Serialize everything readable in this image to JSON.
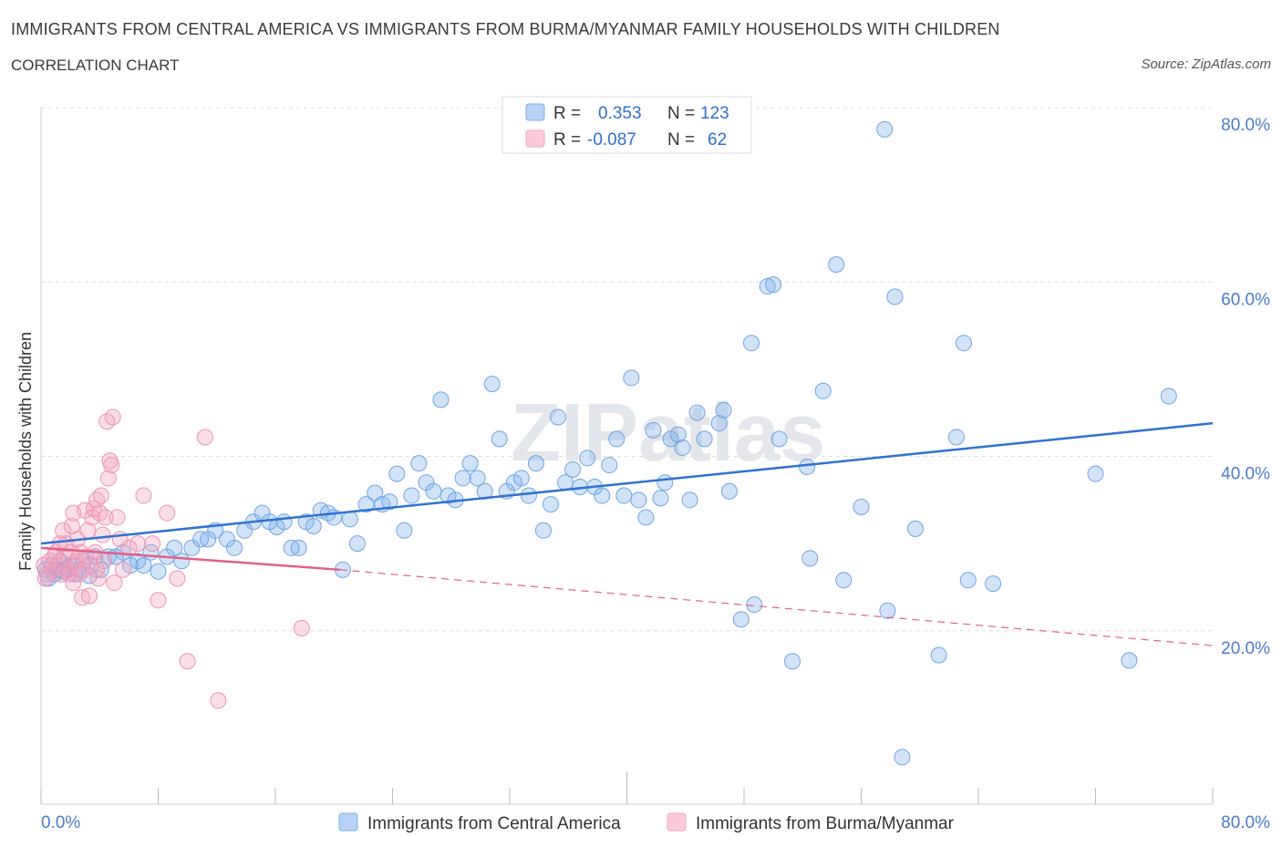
{
  "title": "IMMIGRANTS FROM CENTRAL AMERICA VS IMMIGRANTS FROM BURMA/MYANMAR FAMILY HOUSEHOLDS WITH CHILDREN",
  "subtitle": "CORRELATION CHART",
  "source": "Source: ZipAtlas.com",
  "watermark": "ZIPatlas",
  "colors": {
    "blue": "#7fb0ea",
    "blue_line": "#2f72d1",
    "pink": "#f2a3bd",
    "pink_line": "#e0608a",
    "axis_label": "#4a7cc9",
    "grid": "#dddddd"
  },
  "stats_legend": [
    {
      "r_label": "R =",
      "r_value": "0.353",
      "n_label": "N =",
      "n_value": "123"
    },
    {
      "r_label": "R =",
      "r_value": "-0.087",
      "n_label": "N =",
      "n_value": "62"
    }
  ],
  "chart_data": {
    "type": "scatter",
    "xlabel": "",
    "ylabel": "Family Households with Children",
    "xlim": [
      0,
      80
    ],
    "ylim": [
      0,
      80
    ],
    "x_tick_labels": [
      "0.0%",
      "80.0%"
    ],
    "y_tick_labels": [
      "20.0%",
      "40.0%",
      "60.0%",
      "80.0%"
    ],
    "y_ticks": [
      20,
      40,
      60,
      80
    ],
    "legend": [
      "Immigrants from Central America",
      "Immigrants from Burma/Myanmar"
    ],
    "series": [
      {
        "name": "Immigrants from Central America",
        "color": "#7fb0ea",
        "trend": {
          "x0": 0,
          "y0": 30.0,
          "x1": 80,
          "y1": 43.8
        },
        "points": [
          [
            0.3,
            27.0
          ],
          [
            0.5,
            26.0
          ],
          [
            0.7,
            27.5
          ],
          [
            0.9,
            26.5
          ],
          [
            1.1,
            27.0
          ],
          [
            1.3,
            28.0
          ],
          [
            1.5,
            26.8
          ],
          [
            1.8,
            27.2
          ],
          [
            2.0,
            27.5
          ],
          [
            2.3,
            26.5
          ],
          [
            2.6,
            27.0
          ],
          [
            2.9,
            28.0
          ],
          [
            3.3,
            26.3
          ],
          [
            3.7,
            28.5
          ],
          [
            4.1,
            27.0
          ],
          [
            4.6,
            28.5
          ],
          [
            5.1,
            28.5
          ],
          [
            5.6,
            29.0
          ],
          [
            6.1,
            27.5
          ],
          [
            6.6,
            28.0
          ],
          [
            7.0,
            27.5
          ],
          [
            7.5,
            29.0
          ],
          [
            8.0,
            26.8
          ],
          [
            8.6,
            28.5
          ],
          [
            9.1,
            29.5
          ],
          [
            9.6,
            28.0
          ],
          [
            10.3,
            29.5
          ],
          [
            10.9,
            30.5
          ],
          [
            11.4,
            30.5
          ],
          [
            11.9,
            31.5
          ],
          [
            12.7,
            30.5
          ],
          [
            13.2,
            29.5
          ],
          [
            13.9,
            31.5
          ],
          [
            14.5,
            32.5
          ],
          [
            15.1,
            33.5
          ],
          [
            15.6,
            32.5
          ],
          [
            16.1,
            31.9
          ],
          [
            16.6,
            32.5
          ],
          [
            17.1,
            29.5
          ],
          [
            17.6,
            29.5
          ],
          [
            18.1,
            32.5
          ],
          [
            18.6,
            32.0
          ],
          [
            19.1,
            33.8
          ],
          [
            19.6,
            33.5
          ],
          [
            20.0,
            33.0
          ],
          [
            20.6,
            27.0
          ],
          [
            21.1,
            32.8
          ],
          [
            21.6,
            30.0
          ],
          [
            22.2,
            34.5
          ],
          [
            22.8,
            35.8
          ],
          [
            23.3,
            34.5
          ],
          [
            23.8,
            34.8
          ],
          [
            24.3,
            38.0
          ],
          [
            24.8,
            31.5
          ],
          [
            25.3,
            35.5
          ],
          [
            25.8,
            39.2
          ],
          [
            26.3,
            37.0
          ],
          [
            26.8,
            36.0
          ],
          [
            27.3,
            46.5
          ],
          [
            27.8,
            35.5
          ],
          [
            28.3,
            35.0
          ],
          [
            28.8,
            37.5
          ],
          [
            29.3,
            39.2
          ],
          [
            29.8,
            37.5
          ],
          [
            30.3,
            36.0
          ],
          [
            30.8,
            48.3
          ],
          [
            31.3,
            42.0
          ],
          [
            31.8,
            36.0
          ],
          [
            32.3,
            37.0
          ],
          [
            32.8,
            37.5
          ],
          [
            33.3,
            35.5
          ],
          [
            33.8,
            39.2
          ],
          [
            34.3,
            31.5
          ],
          [
            34.8,
            34.5
          ],
          [
            35.3,
            44.5
          ],
          [
            35.8,
            37.0
          ],
          [
            36.3,
            38.5
          ],
          [
            36.8,
            36.5
          ],
          [
            37.3,
            39.8
          ],
          [
            37.8,
            36.5
          ],
          [
            38.3,
            35.5
          ],
          [
            38.8,
            39.0
          ],
          [
            39.3,
            42.0
          ],
          [
            39.8,
            35.5
          ],
          [
            40.3,
            49.0
          ],
          [
            40.8,
            35.0
          ],
          [
            41.3,
            33.0
          ],
          [
            41.8,
            43.0
          ],
          [
            42.3,
            35.2
          ],
          [
            42.6,
            37.0
          ],
          [
            43.0,
            42.0
          ],
          [
            43.5,
            42.5
          ],
          [
            43.8,
            41.0
          ],
          [
            44.3,
            35.0
          ],
          [
            44.8,
            45.0
          ],
          [
            45.3,
            42.0
          ],
          [
            46.3,
            43.8
          ],
          [
            46.6,
            45.3
          ],
          [
            47.0,
            36.0
          ],
          [
            47.8,
            21.3
          ],
          [
            48.5,
            53.0
          ],
          [
            48.7,
            23.0
          ],
          [
            49.6,
            59.5
          ],
          [
            50.0,
            59.7
          ],
          [
            50.4,
            42.0
          ],
          [
            51.3,
            16.5
          ],
          [
            52.3,
            38.8
          ],
          [
            52.5,
            28.3
          ],
          [
            53.4,
            47.5
          ],
          [
            54.3,
            62.0
          ],
          [
            54.8,
            25.8
          ],
          [
            56.0,
            34.2
          ],
          [
            57.6,
            77.5
          ],
          [
            57.8,
            22.3
          ],
          [
            58.3,
            58.3
          ],
          [
            58.8,
            5.5
          ],
          [
            59.7,
            31.7
          ],
          [
            61.3,
            17.2
          ],
          [
            62.5,
            42.2
          ],
          [
            63.0,
            53.0
          ],
          [
            63.3,
            25.8
          ],
          [
            65.0,
            25.4
          ],
          [
            72.0,
            38.0
          ],
          [
            74.3,
            16.6
          ],
          [
            77.0,
            46.9
          ]
        ]
      },
      {
        "name": "Immigrants from Burma/Myanmar",
        "color": "#f2a3bd",
        "trend": {
          "x0": 0,
          "y0": 29.5,
          "x1": 20.4,
          "y1": 27.0,
          "dash_x1": 80,
          "dash_y1": 18.3
        },
        "points": [
          [
            0.2,
            27.5
          ],
          [
            0.4,
            26.5
          ],
          [
            0.6,
            28.0
          ],
          [
            0.8,
            27.0
          ],
          [
            1.0,
            29.0
          ],
          [
            1.2,
            27.5
          ],
          [
            1.4,
            26.5
          ],
          [
            1.5,
            31.5
          ],
          [
            1.6,
            28.5
          ],
          [
            1.7,
            30.0
          ],
          [
            1.8,
            27.0
          ],
          [
            1.9,
            26.5
          ],
          [
            2.0,
            29.0
          ],
          [
            2.1,
            32.0
          ],
          [
            2.2,
            33.5
          ],
          [
            2.3,
            27.5
          ],
          [
            2.4,
            28.0
          ],
          [
            2.5,
            30.5
          ],
          [
            2.6,
            26.5
          ],
          [
            2.7,
            29.0
          ],
          [
            2.8,
            23.8
          ],
          [
            2.9,
            27.0
          ],
          [
            3.0,
            33.8
          ],
          [
            3.1,
            28.5
          ],
          [
            3.2,
            31.5
          ],
          [
            3.3,
            24.0
          ],
          [
            3.4,
            27.5
          ],
          [
            3.5,
            33.0
          ],
          [
            3.6,
            34.0
          ],
          [
            3.7,
            29.0
          ],
          [
            3.8,
            35.0
          ],
          [
            3.9,
            26.0
          ],
          [
            4.0,
            33.5
          ],
          [
            4.1,
            35.5
          ],
          [
            4.2,
            31.0
          ],
          [
            4.3,
            28.0
          ],
          [
            4.4,
            33.0
          ],
          [
            4.5,
            44.0
          ],
          [
            4.6,
            37.5
          ],
          [
            4.7,
            39.5
          ],
          [
            4.8,
            39.0
          ],
          [
            4.9,
            44.5
          ],
          [
            5.0,
            25.5
          ],
          [
            5.2,
            33.0
          ],
          [
            5.4,
            30.5
          ],
          [
            5.6,
            27.0
          ],
          [
            6.0,
            29.5
          ],
          [
            6.6,
            30.0
          ],
          [
            7.0,
            35.5
          ],
          [
            7.6,
            30.0
          ],
          [
            8.0,
            23.5
          ],
          [
            8.6,
            33.5
          ],
          [
            9.3,
            26.0
          ],
          [
            10.0,
            16.5
          ],
          [
            11.2,
            42.2
          ],
          [
            12.1,
            12.0
          ],
          [
            17.8,
            20.3
          ],
          [
            0.3,
            26.0
          ],
          [
            0.9,
            28.5
          ],
          [
            1.3,
            30.0
          ],
          [
            2.2,
            25.5
          ],
          [
            3.8,
            27.0
          ]
        ]
      }
    ]
  }
}
